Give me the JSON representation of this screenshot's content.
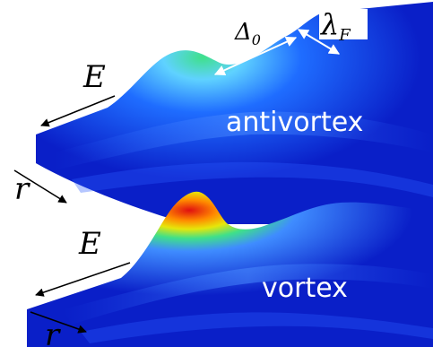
{
  "colors": {
    "deep_blue": "#0a1fc8",
    "mid_blue": "#1447ff",
    "light_blue": "#3f8cff",
    "cyan": "#5fd2ff",
    "green": "#3fe08a",
    "yellow": "#e6e60a",
    "orange": "#ff8a00",
    "red": "#e01010",
    "arrow": "#000000",
    "arrow_white": "#ffffff"
  },
  "panels": {
    "top": {
      "label": "antivortex",
      "energy_symbol": "E",
      "radius_symbol": "r",
      "gap_symbol": "Δ",
      "gap_subscript": "0",
      "fermi_symbol": "λ",
      "fermi_subscript": "F"
    },
    "bottom": {
      "label": "vortex",
      "energy_symbol": "E",
      "radius_symbol": "r"
    }
  }
}
